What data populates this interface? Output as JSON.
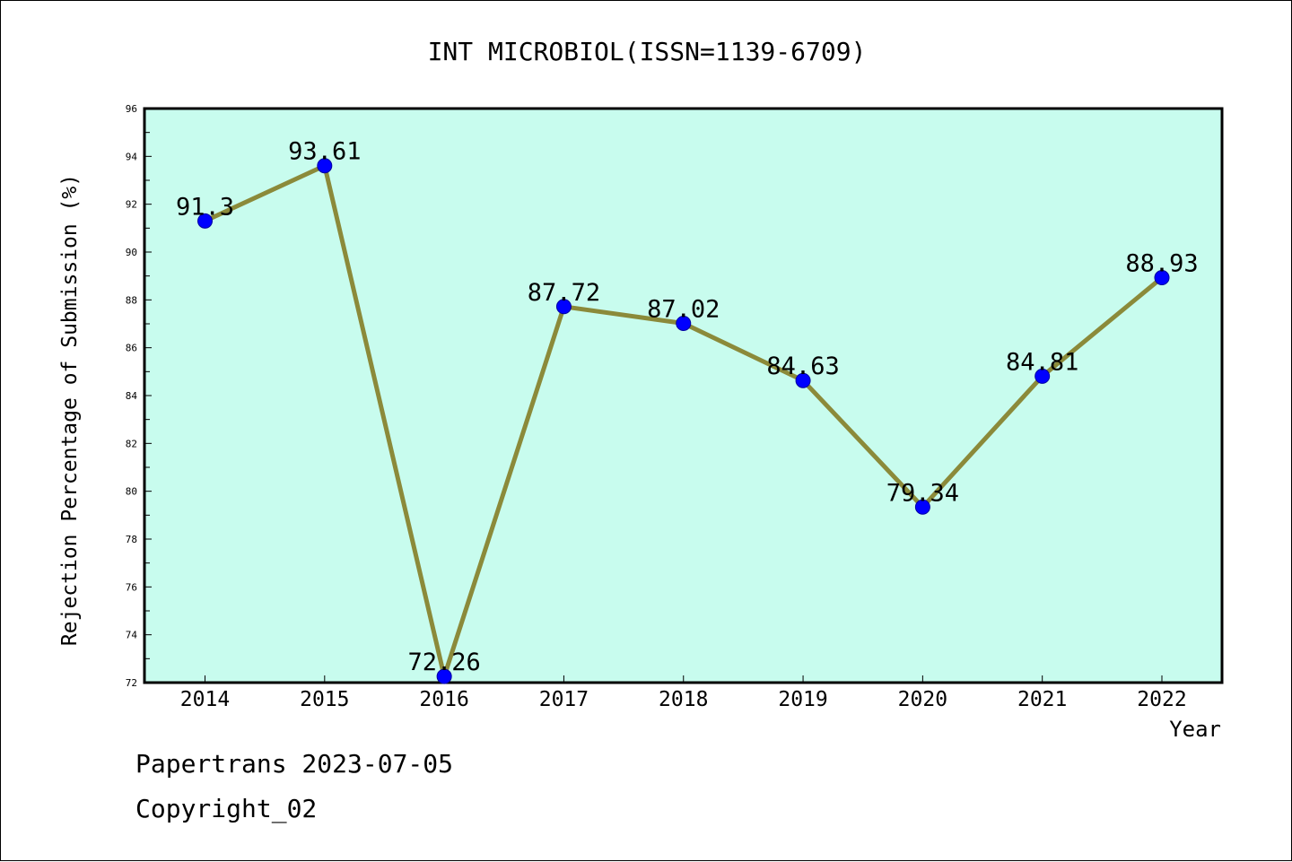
{
  "chart_data": {
    "type": "line",
    "title": "INT MICROBIOL(ISSN=1139-6709)",
    "xlabel": "Year",
    "ylabel": "Rejection Percentage of Submission (%)",
    "categories": [
      "2014",
      "2015",
      "2016",
      "2017",
      "2018",
      "2019",
      "2020",
      "2021",
      "2022"
    ],
    "values": [
      91.3,
      93.61,
      72.26,
      87.72,
      87.02,
      84.63,
      79.34,
      84.81,
      88.93
    ],
    "value_labels": [
      "91.3",
      "93.61",
      "72.26",
      "87.72",
      "87.02",
      "84.63",
      "79.34",
      "84.81",
      "88.93"
    ],
    "ylim": [
      72,
      96
    ],
    "yticks": [
      72,
      74,
      76,
      78,
      80,
      82,
      84,
      86,
      88,
      90,
      92,
      94,
      96
    ],
    "grid": false,
    "colors": {
      "plot_background": "#c8fcee",
      "line": "#8b8a3a",
      "marker": "#0000ff"
    }
  },
  "footer": {
    "line1": "Papertrans 2023-07-05",
    "line2": "Copyright_02"
  }
}
